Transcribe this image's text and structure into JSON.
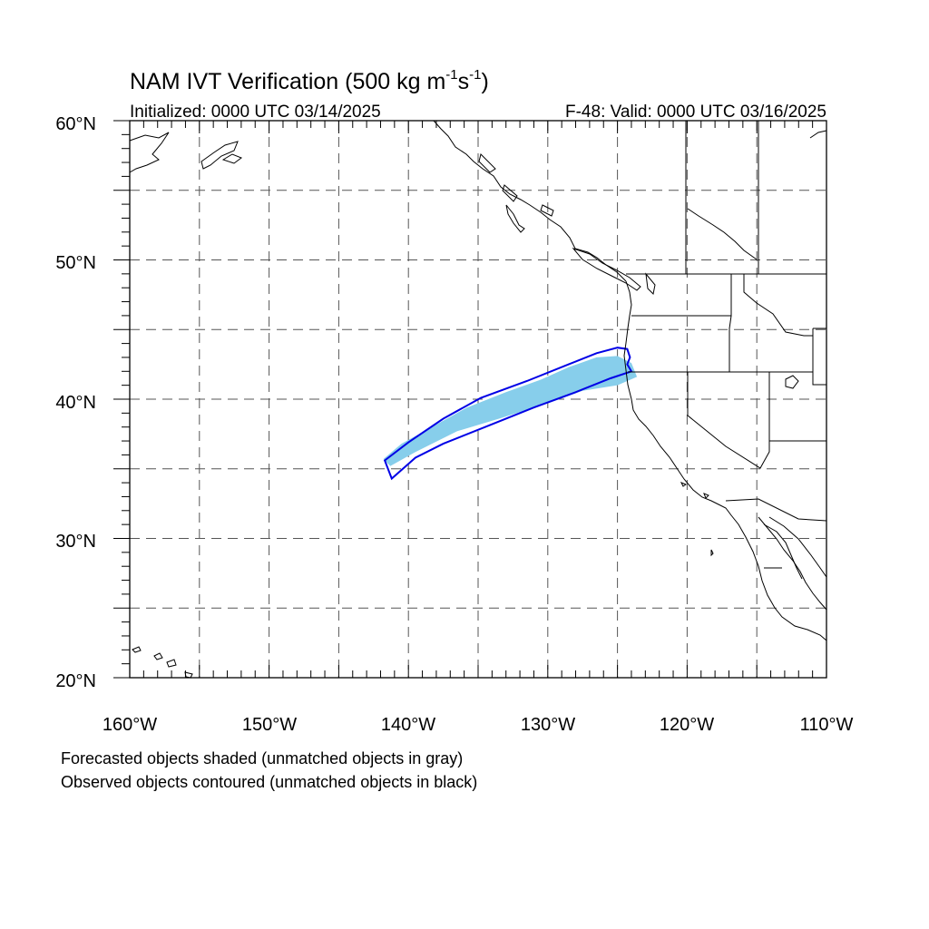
{
  "title": {
    "main": "NAM IVT Verification (500 kg m",
    "sup1": "-1",
    "mid": "s",
    "sup2": "-1",
    "end": ")"
  },
  "subtitle_left": "Initialized: 0000 UTC 03/14/2025",
  "subtitle_right": "F-48: Valid: 0000 UTC 03/16/2025",
  "lat_labels": [
    "60°N",
    "50°N",
    "40°N",
    "30°N",
    "20°N"
  ],
  "lon_labels": [
    "160°W",
    "150°W",
    "140°W",
    "130°W",
    "120°W",
    "110°W"
  ],
  "footnotes": [
    "Forecasted objects shaded (unmatched objects in gray)",
    "Observed objects contoured (unmatched objects in black)"
  ],
  "map_extent": {
    "lon_min": -160,
    "lon_max": -110,
    "lat_min": 20,
    "lat_max": 60
  },
  "colors": {
    "forecast_object_fill": "#87ceeb",
    "observed_object_contour": "#0000e6",
    "coastline": "#000000",
    "grid": "#555555"
  },
  "forecast_object": [
    [
      -141.8,
      35.7
    ],
    [
      -140.5,
      36.8
    ],
    [
      -138.5,
      37.9
    ],
    [
      -135.8,
      39.4
    ],
    [
      -133.0,
      40.5
    ],
    [
      -130.5,
      41.4
    ],
    [
      -128.5,
      42.3
    ],
    [
      -126.5,
      43.0
    ],
    [
      -125.0,
      43.1
    ],
    [
      -124.0,
      42.6
    ],
    [
      -123.6,
      41.6
    ],
    [
      -125.0,
      41.0
    ],
    [
      -127.5,
      40.6
    ],
    [
      -130.0,
      39.7
    ],
    [
      -133.5,
      38.6
    ],
    [
      -136.5,
      37.7
    ],
    [
      -139.5,
      36.2
    ],
    [
      -141.3,
      35.2
    ]
  ],
  "observed_object": [
    [
      -141.7,
      35.6
    ],
    [
      -140.0,
      36.9
    ],
    [
      -137.5,
      38.6
    ],
    [
      -134.8,
      40.1
    ],
    [
      -131.5,
      41.3
    ],
    [
      -128.5,
      42.5
    ],
    [
      -126.5,
      43.3
    ],
    [
      -125.0,
      43.7
    ],
    [
      -124.3,
      43.6
    ],
    [
      -124.1,
      43.0
    ],
    [
      -124.3,
      42.5
    ],
    [
      -124.0,
      42.0
    ],
    [
      -125.5,
      41.5
    ],
    [
      -128.0,
      40.5
    ],
    [
      -131.0,
      39.4
    ],
    [
      -134.5,
      38.0
    ],
    [
      -137.5,
      36.8
    ],
    [
      -139.5,
      35.8
    ],
    [
      -141.2,
      34.3
    ]
  ]
}
